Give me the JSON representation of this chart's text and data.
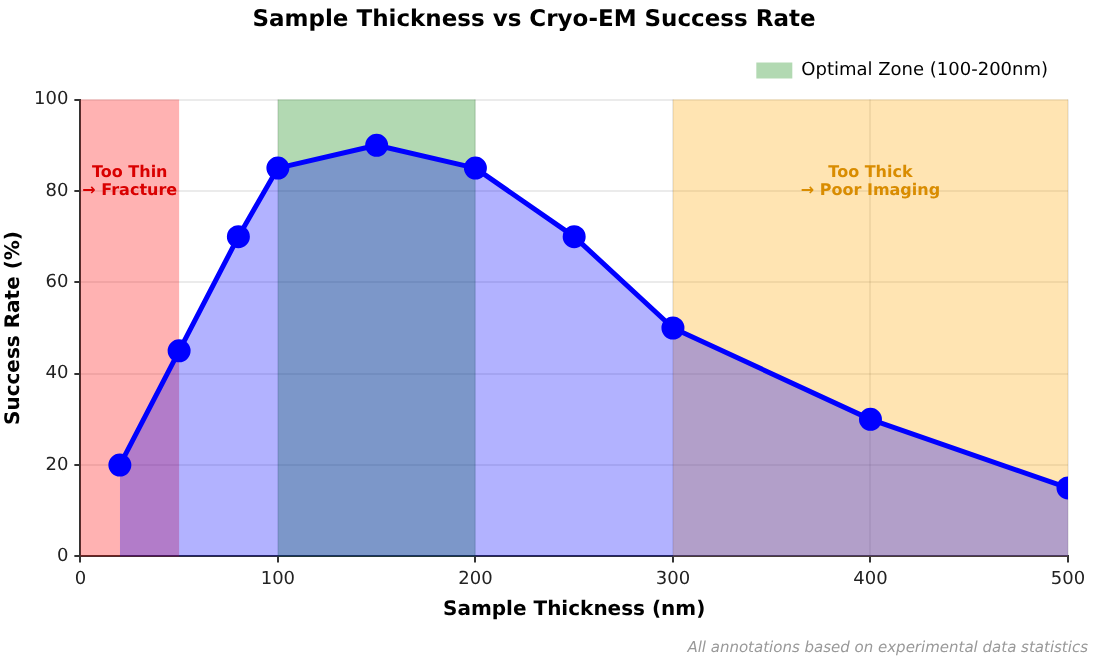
{
  "chart_data": {
    "type": "area",
    "title": "Sample Thickness vs Cryo-EM Success Rate",
    "xlabel": "Sample Thickness (nm)",
    "ylabel": "Success Rate (%)",
    "x": [
      20,
      50,
      80,
      100,
      150,
      200,
      250,
      300,
      400,
      500
    ],
    "series": [
      {
        "color": "#0000ff",
        "values": [
          20,
          45,
          70,
          85,
          90,
          85,
          70,
          50,
          30,
          15
        ]
      }
    ],
    "xlim": [
      0,
      500
    ],
    "xticks": [
      0,
      100,
      200,
      300,
      400,
      500
    ],
    "ylim": [
      0,
      100
    ],
    "yticks": [
      0,
      20,
      40,
      60,
      80,
      100
    ],
    "grid": true,
    "marker": "circle",
    "legend": "top right",
    "bands": [
      {
        "axis": "x",
        "from": 0,
        "to": 50,
        "color": "#ff0000"
      },
      {
        "axis": "x",
        "from": 100,
        "to": 200,
        "label": "Optimal Zone (100-200nm)",
        "color": "#008000"
      },
      {
        "axis": "x",
        "from": 300,
        "to": 500,
        "color": "#ffa500"
      }
    ],
    "annotations": [
      "Too Thin\n→ Fracture",
      "Too Thick\n→ Poor Imaging",
      "All annotations based on experimental data statistics"
    ]
  }
}
